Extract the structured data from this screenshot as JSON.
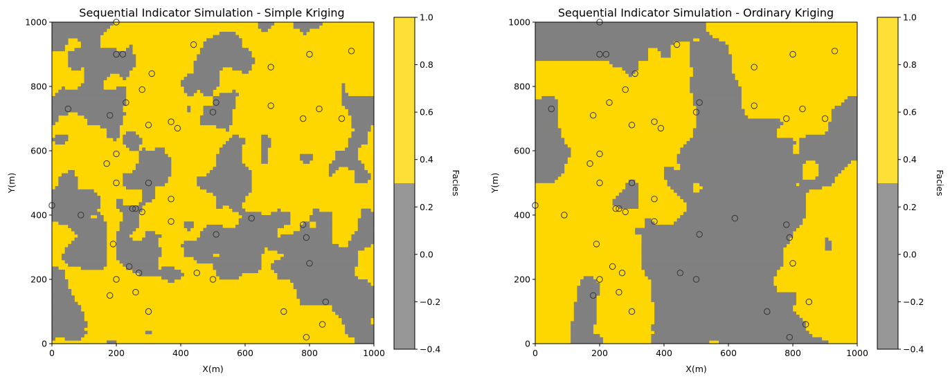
{
  "chart_data": [
    {
      "type": "heatmap",
      "title": "Sequential Indicator Simulation - Simple Kriging",
      "xlabel": "X(m)",
      "ylabel": "Y(m)",
      "xlim": [
        0,
        1000
      ],
      "ylim": [
        0,
        1000
      ],
      "xticks": [
        "0",
        "200",
        "400",
        "600",
        "800",
        "1000"
      ],
      "yticks": [
        "0",
        "200",
        "400",
        "600",
        "800",
        "1000"
      ],
      "grid_cells": 100,
      "facies_colors": {
        "0": "#808080",
        "1": "#ffd700"
      },
      "facies1_fraction": 0.65,
      "colorbar": {
        "label": "Facies",
        "ticks": [
          "1.0",
          "0.8",
          "0.6",
          "0.4",
          "0.2",
          "0.0",
          "−0.2",
          "−0.4"
        ],
        "range": [
          -0.4,
          1.0
        ],
        "split": 0.3
      }
    },
    {
      "type": "heatmap",
      "title": "Sequential Indicator Simulation - Ordinary Kriging",
      "xlabel": "X(m)",
      "ylabel": "Y(m)",
      "xlim": [
        0,
        1000
      ],
      "ylim": [
        0,
        1000
      ],
      "xticks": [
        "0",
        "200",
        "400",
        "600",
        "800",
        "1000"
      ],
      "yticks": [
        "0",
        "200",
        "400",
        "600",
        "800",
        "1000"
      ],
      "grid_cells": 100,
      "facies_colors": {
        "0": "#808080",
        "1": "#ffd700"
      },
      "facies1_fraction": 0.55,
      "colorbar": {
        "label": "Facies",
        "ticks": [
          "1.0",
          "0.8",
          "0.6",
          "0.4",
          "0.2",
          "0.0",
          "−0.2",
          "−0.4"
        ],
        "range": [
          -0.4,
          1.0
        ],
        "split": 0.3
      }
    }
  ],
  "wells": [
    [
      0,
      430
    ],
    [
      50,
      730
    ],
    [
      90,
      400
    ],
    [
      170,
      560
    ],
    [
      180,
      150
    ],
    [
      180,
      710
    ],
    [
      190,
      310
    ],
    [
      200,
      200
    ],
    [
      200,
      500
    ],
    [
      200,
      590
    ],
    [
      200,
      900
    ],
    [
      200,
      1000
    ],
    [
      220,
      900
    ],
    [
      230,
      750
    ],
    [
      240,
      240
    ],
    [
      250,
      420
    ],
    [
      260,
      420
    ],
    [
      260,
      160
    ],
    [
      270,
      220
    ],
    [
      280,
      790
    ],
    [
      280,
      410
    ],
    [
      300,
      100
    ],
    [
      300,
      500
    ],
    [
      300,
      680
    ],
    [
      310,
      840
    ],
    [
      370,
      690
    ],
    [
      370,
      450
    ],
    [
      370,
      380
    ],
    [
      390,
      670
    ],
    [
      440,
      930
    ],
    [
      450,
      220
    ],
    [
      500,
      200
    ],
    [
      500,
      720
    ],
    [
      510,
      340
    ],
    [
      510,
      750
    ],
    [
      620,
      390
    ],
    [
      680,
      740
    ],
    [
      680,
      860
    ],
    [
      720,
      100
    ],
    [
      780,
      700
    ],
    [
      780,
      370
    ],
    [
      790,
      330
    ],
    [
      790,
      20
    ],
    [
      800,
      250
    ],
    [
      800,
      900
    ],
    [
      830,
      730
    ],
    [
      840,
      60
    ],
    [
      850,
      130
    ],
    [
      900,
      700
    ],
    [
      930,
      910
    ]
  ]
}
